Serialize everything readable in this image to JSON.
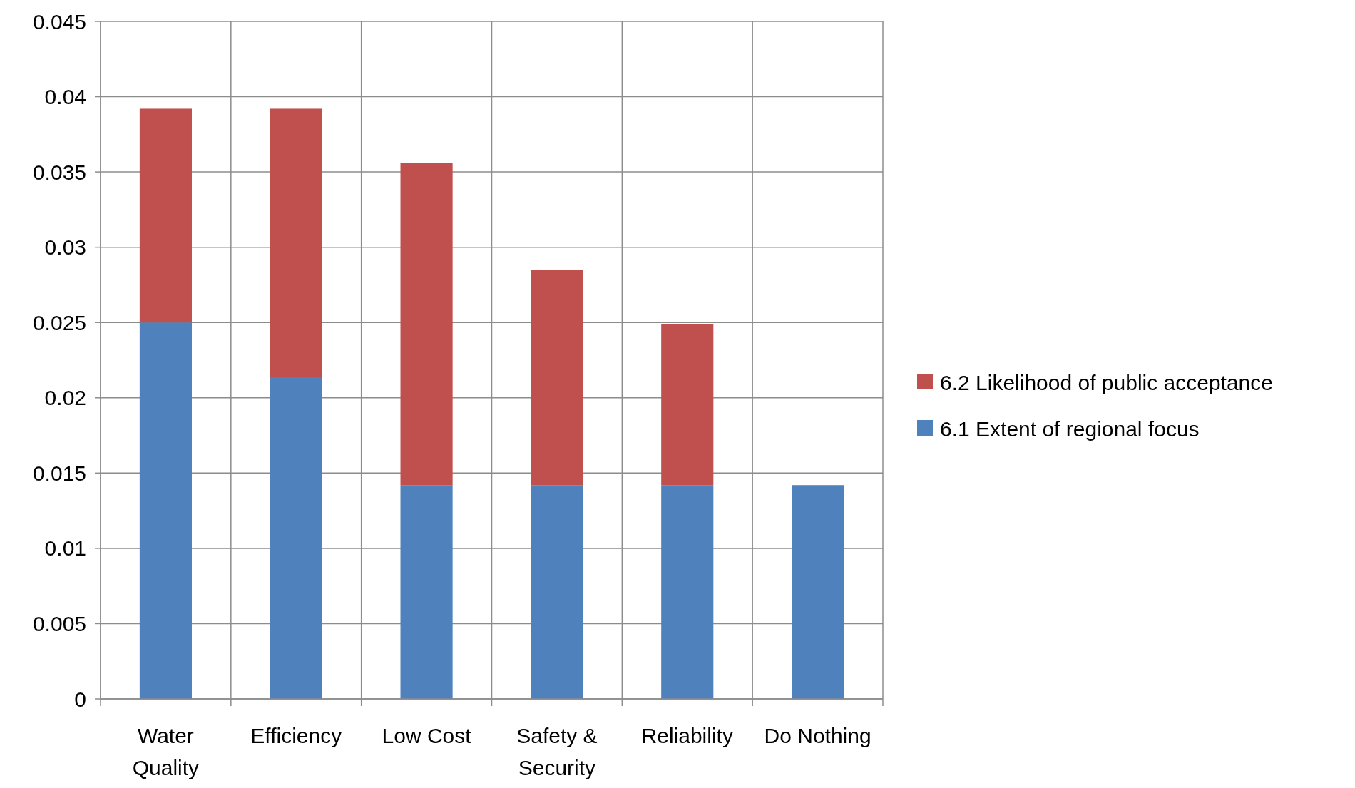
{
  "chart_data": {
    "type": "bar",
    "stacked": true,
    "categories": [
      "Water Quality",
      "Efficiency",
      "Low Cost",
      "Safety & Security",
      "Reliability",
      "Do Nothing"
    ],
    "series": [
      {
        "name": "6.1 Extent of regional focus",
        "color": "#4f81bd",
        "values": [
          0.025,
          0.0214,
          0.0142,
          0.0142,
          0.0142,
          0.0142
        ]
      },
      {
        "name": "6.2 Likelihood of public acceptance",
        "color": "#c0504d",
        "values": [
          0.0142,
          0.0178,
          0.0214,
          0.0143,
          0.0107,
          0
        ]
      }
    ],
    "ylim": [
      0,
      0.045
    ],
    "yticks": [
      0,
      0.005,
      0.01,
      0.015,
      0.02,
      0.025,
      0.03,
      0.035,
      0.04,
      0.045
    ],
    "grid": true,
    "legend": "right"
  }
}
